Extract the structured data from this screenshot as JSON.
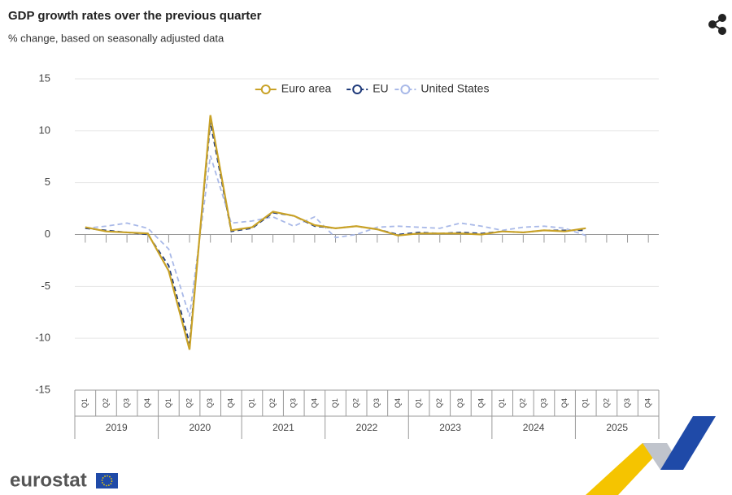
{
  "chart_data": {
    "type": "line",
    "title": "GDP growth rates over the previous quarter",
    "subtitle": "% change, based on seasonally adjusted data",
    "categories": [
      "Q1",
      "Q2",
      "Q3",
      "Q4",
      "Q1",
      "Q2",
      "Q3",
      "Q4",
      "Q1",
      "Q2",
      "Q3",
      "Q4",
      "Q1",
      "Q2",
      "Q3",
      "Q4",
      "Q1",
      "Q2",
      "Q3",
      "Q4",
      "Q1",
      "Q2",
      "Q3",
      "Q4",
      "Q1",
      "Q2",
      "Q3",
      "Q4"
    ],
    "years": [
      "2019",
      "2020",
      "2021",
      "2022",
      "2023",
      "2024",
      "2025"
    ],
    "series": [
      {
        "name": "Euro area",
        "color": "#c9a227",
        "dashed": false,
        "values": [
          0.7,
          0.3,
          0.2,
          0.1,
          -3.5,
          -11.1,
          11.5,
          0.4,
          0.7,
          2.2,
          1.8,
          0.9,
          0.6,
          0.8,
          0.5,
          -0.1,
          0.1,
          0.1,
          0.1,
          0.0,
          0.3,
          0.2,
          0.4,
          0.3,
          0.6,
          null,
          null,
          null
        ]
      },
      {
        "name": "EU",
        "color": "#1f3a7a",
        "dashed": true,
        "values": [
          0.6,
          0.4,
          0.2,
          0.0,
          -3.0,
          -10.5,
          10.8,
          0.3,
          0.6,
          2.1,
          1.8,
          0.8,
          0.6,
          0.8,
          0.5,
          0.0,
          0.2,
          0.1,
          0.2,
          0.1,
          0.3,
          0.2,
          0.4,
          0.4,
          0.4,
          null,
          null,
          null
        ]
      },
      {
        "name": "United States",
        "color": "#a9b9e8",
        "dashed": true,
        "values": [
          0.6,
          0.8,
          1.1,
          0.6,
          -1.4,
          -7.9,
          7.6,
          1.1,
          1.3,
          1.7,
          0.8,
          1.7,
          -0.3,
          0.0,
          0.7,
          0.8,
          0.7,
          0.6,
          1.1,
          0.8,
          0.4,
          0.7,
          0.8,
          0.6,
          -0.1,
          null,
          null,
          null
        ]
      }
    ],
    "ylim": [
      -15,
      15
    ],
    "yticks": [
      -15,
      -10,
      -5,
      0,
      5,
      10,
      15
    ],
    "grid": true,
    "legend": "top"
  },
  "brand": "eurostat"
}
